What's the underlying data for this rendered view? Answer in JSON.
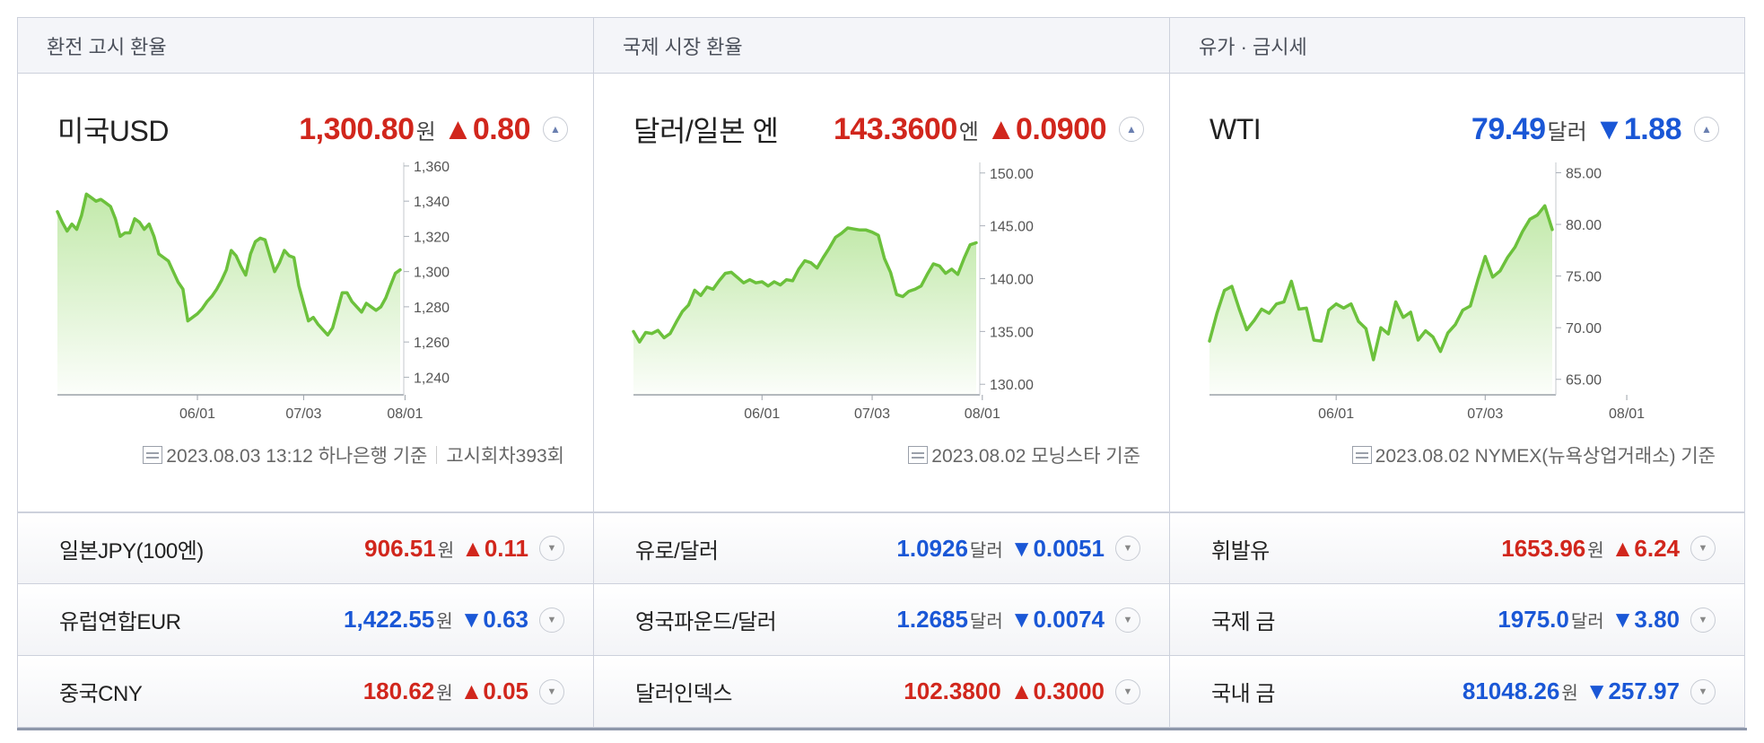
{
  "panels": [
    {
      "header": "환전 고시 환율",
      "name": "미국USD",
      "value": "1,300.80",
      "unit": "원",
      "change": "▲0.80",
      "direction": "up",
      "source": "2023.08.03 13:12 하나은행 기준",
      "extra": "고시회차393회"
    },
    {
      "header": "국제 시장 환율",
      "name": "달러/일본 엔",
      "value": "143.3600",
      "unit": "엔",
      "change": "▲0.0900",
      "direction": "up",
      "source": "2023.08.02 모닝스타 기준",
      "extra": ""
    },
    {
      "header": "유가 · 금시세",
      "name": "WTI",
      "value": "79.49",
      "unit": "달러",
      "change": "▼1.88",
      "direction": "down",
      "source": "2023.08.02 NYMEX(뉴욕상업거래소) 기준",
      "extra": ""
    }
  ],
  "rows": [
    [
      {
        "name": "일본JPY(100엔)",
        "value": "906.51",
        "unit": "원",
        "change": "▲0.11",
        "direction": "up"
      },
      {
        "name": "유로/달러",
        "value": "1.0926",
        "unit": "달러",
        "change": "▼0.0051",
        "direction": "down"
      },
      {
        "name": "휘발유",
        "value": "1653.96",
        "unit": "원",
        "change": "▲6.24",
        "direction": "up"
      }
    ],
    [
      {
        "name": "유럽연합EUR",
        "value": "1,422.55",
        "unit": "원",
        "change": "▼0.63",
        "direction": "down"
      },
      {
        "name": "영국파운드/달러",
        "value": "1.2685",
        "unit": "달러",
        "change": "▼0.0074",
        "direction": "down"
      },
      {
        "name": "국제 금",
        "value": "1975.0",
        "unit": "달러",
        "change": "▼3.80",
        "direction": "down"
      }
    ],
    [
      {
        "name": "중국CNY",
        "value": "180.62",
        "unit": "원",
        "change": "▲0.05",
        "direction": "up"
      },
      {
        "name": "달러인덱스",
        "value": "102.3800",
        "unit": "",
        "change": "▲0.3000",
        "direction": "up"
      },
      {
        "name": "국내 금",
        "value": "81048.26",
        "unit": "원",
        "change": "▼257.97",
        "direction": "down"
      }
    ]
  ],
  "colors": {
    "up": "#d1261c",
    "down": "#1a57d6",
    "line": "#6cc13c",
    "fill": "#bfe8a6"
  },
  "icons": {
    "expand": "chevron-up-icon",
    "collapse": "chevron-down-icon",
    "source": "document-icon"
  },
  "chart_data": [
    {
      "type": "area",
      "xlabels": [
        "06/01",
        "07/03",
        "08/01"
      ],
      "xlabel_index": [
        29,
        51,
        72
      ],
      "yticks": [
        "1,360",
        "1,340",
        "1,320",
        "1,300",
        "1,280",
        "1,260",
        "1,240"
      ],
      "ylim": [
        1230,
        1362
      ],
      "series": [
        {
          "values": [
            1334,
            1328,
            1323,
            1327,
            1324,
            1332,
            1344,
            1342,
            1340,
            1341,
            1339,
            1337,
            1330,
            1320,
            1322,
            1322,
            1330,
            1328,
            1324,
            1327,
            1320,
            1310,
            1308,
            1306,
            1300,
            1294,
            1290,
            1272,
            1274,
            1276,
            1279,
            1283,
            1286,
            1290,
            1295,
            1301,
            1312,
            1309,
            1303,
            1298,
            1310,
            1317,
            1319,
            1318,
            1309,
            1300,
            1305,
            1312,
            1309,
            1308,
            1292,
            1282,
            1272,
            1274,
            1270,
            1267,
            1264,
            1268,
            1278,
            1288,
            1288,
            1283,
            1280,
            1277,
            1282,
            1280,
            1278,
            1280,
            1285,
            1292,
            1299,
            1301
          ]
        }
      ]
    },
    {
      "type": "area",
      "xlabels": [
        "06/01",
        "07/03",
        "08/01"
      ],
      "xlabel_index": [
        21,
        39,
        57
      ],
      "yticks": [
        "150.00",
        "145.00",
        "140.00",
        "135.00",
        "130.00"
      ],
      "ylim": [
        129.0,
        151.0
      ],
      "series": [
        {
          "values": [
            135.0,
            134.0,
            134.9,
            134.8,
            135.1,
            134.4,
            134.8,
            135.9,
            136.9,
            137.5,
            138.9,
            138.4,
            139.2,
            139.0,
            139.8,
            140.5,
            140.6,
            140.1,
            139.6,
            139.9,
            139.6,
            139.7,
            139.3,
            139.7,
            139.4,
            139.9,
            139.8,
            140.9,
            141.7,
            141.5,
            141.0,
            142.0,
            142.9,
            143.9,
            144.3,
            144.8,
            144.7,
            144.6,
            144.6,
            144.4,
            144.1,
            141.9,
            140.6,
            138.5,
            138.3,
            138.8,
            139.0,
            139.3,
            140.4,
            141.4,
            141.2,
            140.5,
            140.9,
            140.4,
            141.9,
            143.2,
            143.4
          ]
        }
      ]
    },
    {
      "type": "area",
      "xlabels": [
        "06/01",
        "07/03",
        "08/01"
      ],
      "xlabel_index": [
        17,
        37,
        56
      ],
      "yticks": [
        "85.00",
        "80.00",
        "75.00",
        "70.00",
        "65.00"
      ],
      "ylim": [
        63.5,
        86.0
      ],
      "series": [
        {
          "values": [
            68.7,
            71.4,
            73.6,
            74.0,
            71.8,
            69.8,
            70.7,
            71.8,
            71.4,
            72.3,
            72.5,
            74.5,
            71.8,
            71.9,
            68.8,
            68.7,
            71.7,
            72.3,
            71.9,
            72.3,
            70.6,
            69.9,
            66.9,
            70.0,
            69.4,
            72.5,
            71.0,
            71.5,
            68.8,
            69.7,
            69.1,
            67.7,
            69.5,
            70.3,
            71.7,
            72.1,
            74.6,
            76.9,
            74.9,
            75.5,
            76.8,
            77.8,
            79.3,
            80.5,
            80.9,
            81.8,
            79.5
          ]
        }
      ]
    }
  ]
}
